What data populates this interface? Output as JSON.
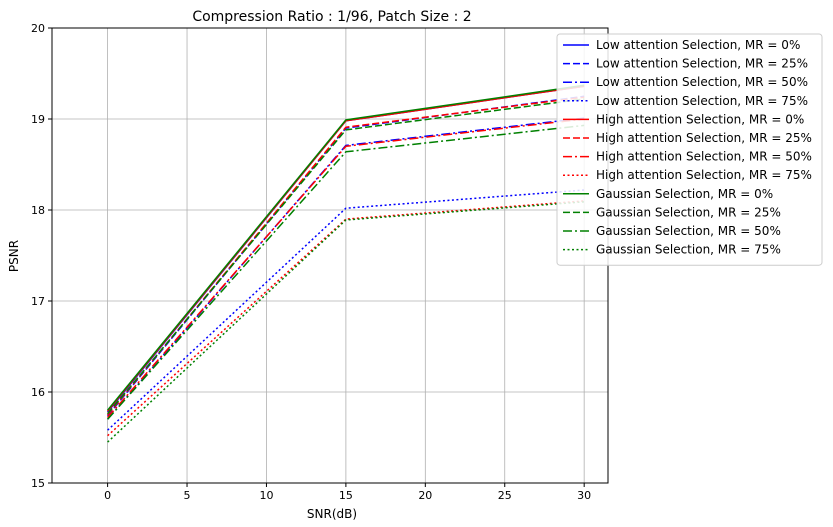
{
  "chart_data": {
    "type": "line",
    "title": "Compression Ratio : 1/96, Patch Size : 2",
    "xlabel": "SNR(dB)",
    "ylabel": "PSNR",
    "xlim": [
      -3.5,
      31.5
    ],
    "ylim": [
      15,
      20
    ],
    "x_ticks": [
      0,
      5,
      10,
      15,
      20,
      25,
      30
    ],
    "y_ticks": [
      15,
      16,
      17,
      18,
      19,
      20
    ],
    "grid": true,
    "legend_position": "top-right",
    "x": [
      0,
      15,
      30
    ],
    "series": [
      {
        "name": "Low attention Selection, MR = 0%",
        "color": "#0000ff",
        "dash": "solid",
        "values": [
          15.78,
          18.98,
          19.36
        ]
      },
      {
        "name": "Low attention Selection, MR = 25%",
        "color": "#0000ff",
        "dash": "dashed",
        "values": [
          15.74,
          18.9,
          19.25
        ]
      },
      {
        "name": "Low attention Selection, MR = 50%",
        "color": "#0000ff",
        "dash": "dashdot",
        "values": [
          15.7,
          18.71,
          19.01
        ]
      },
      {
        "name": "Low attention Selection, MR = 75%",
        "color": "#0000ff",
        "dash": "dotted",
        "values": [
          15.58,
          18.02,
          18.22
        ]
      },
      {
        "name": "High attention Selection, MR = 0%",
        "color": "#ff0000",
        "dash": "solid",
        "values": [
          15.79,
          18.98,
          19.36
        ]
      },
      {
        "name": "High attention Selection, MR = 25%",
        "color": "#ff0000",
        "dash": "dashed",
        "values": [
          15.75,
          18.91,
          19.24
        ]
      },
      {
        "name": "High attention Selection, MR = 50%",
        "color": "#ff0000",
        "dash": "dashdot",
        "values": [
          15.72,
          18.7,
          19.0
        ]
      },
      {
        "name": "High attention Selection, MR = 75%",
        "color": "#ff0000",
        "dash": "dotted",
        "values": [
          15.52,
          17.9,
          18.1
        ]
      },
      {
        "name": "Gaussian Selection, MR = 0%",
        "color": "#008000",
        "dash": "solid",
        "values": [
          15.8,
          18.99,
          19.37
        ]
      },
      {
        "name": "Gaussian Selection, MR = 25%",
        "color": "#008000",
        "dash": "dashed",
        "values": [
          15.76,
          18.88,
          19.22
        ]
      },
      {
        "name": "Gaussian Selection, MR = 50%",
        "color": "#008000",
        "dash": "dashdot",
        "values": [
          15.7,
          18.64,
          18.93
        ]
      },
      {
        "name": "Gaussian Selection, MR = 75%",
        "color": "#008000",
        "dash": "dotted",
        "values": [
          15.45,
          17.89,
          18.09
        ]
      }
    ]
  }
}
